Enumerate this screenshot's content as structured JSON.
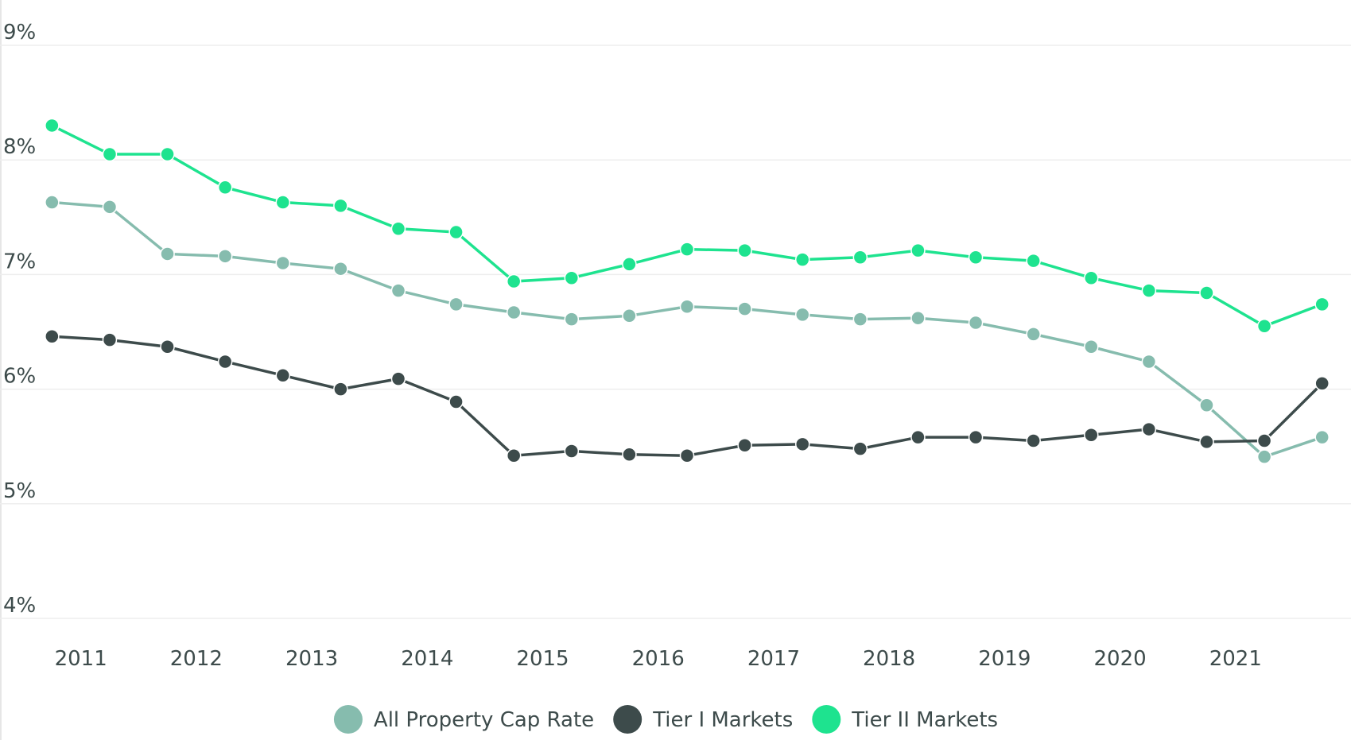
{
  "chart_data": {
    "type": "line",
    "x": [
      2010.75,
      2011.25,
      2011.75,
      2012.25,
      2012.75,
      2013.25,
      2013.75,
      2014.25,
      2014.75,
      2015.25,
      2015.75,
      2016.25,
      2016.75,
      2017.25,
      2017.75,
      2018.25,
      2018.75,
      2019.25,
      2019.75,
      2020.25,
      2020.75,
      2021.25,
      2021.75
    ],
    "series": [
      {
        "name": "All Property Cap Rate",
        "color": "#86bcae",
        "values": [
          7.63,
          7.59,
          7.18,
          7.16,
          7.1,
          7.05,
          6.86,
          6.74,
          6.67,
          6.61,
          6.64,
          6.72,
          6.7,
          6.65,
          6.61,
          6.62,
          6.58,
          6.48,
          6.37,
          6.24,
          5.86,
          5.41,
          5.58
        ]
      },
      {
        "name": "Tier I Markets",
        "color": "#3d4b4b",
        "values": [
          6.46,
          6.43,
          6.37,
          6.24,
          6.12,
          6.0,
          6.09,
          5.89,
          5.42,
          5.46,
          5.43,
          5.42,
          5.51,
          5.52,
          5.48,
          5.58,
          5.58,
          5.55,
          5.6,
          5.65,
          5.54,
          5.55,
          6.05
        ]
      },
      {
        "name": "Tier II Markets",
        "color": "#1ee38f",
        "values": [
          8.3,
          8.05,
          8.05,
          7.76,
          7.63,
          7.6,
          7.4,
          7.37,
          6.94,
          6.97,
          7.09,
          7.22,
          7.21,
          7.13,
          7.15,
          7.21,
          7.15,
          7.12,
          6.97,
          6.86,
          6.84,
          6.55,
          6.74
        ]
      }
    ],
    "xlim": [
      2010.3,
      2022.0
    ],
    "xticks": [
      2011,
      2012,
      2013,
      2014,
      2015,
      2016,
      2017,
      2018,
      2019,
      2020,
      2021
    ],
    "ylim": [
      4,
      9
    ],
    "yticks": [
      {
        "value": 4,
        "label": "4%"
      },
      {
        "value": 5,
        "label": "5%"
      },
      {
        "value": 6,
        "label": "6%"
      },
      {
        "value": 7,
        "label": "7%"
      },
      {
        "value": 8,
        "label": "8%"
      },
      {
        "value": 9,
        "label": "9%"
      }
    ],
    "grid": true,
    "legend": "bottom"
  }
}
